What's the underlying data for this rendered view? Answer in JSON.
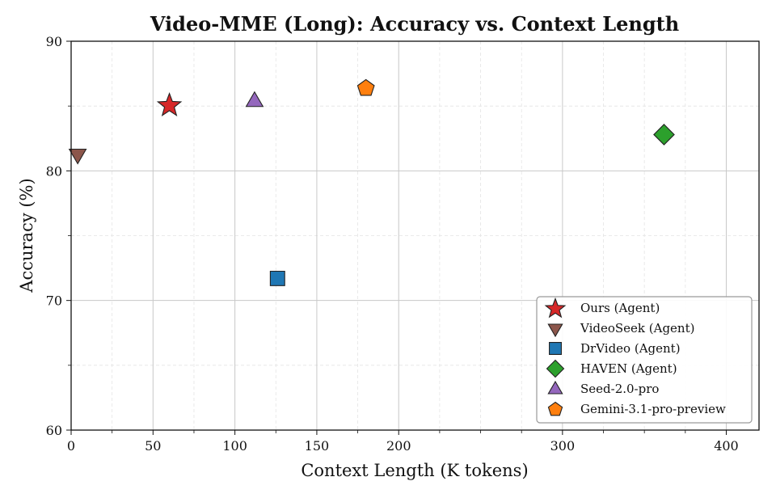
{
  "chart_data": {
    "type": "scatter",
    "title": "Video-MME (Long): Accuracy vs. Context Length",
    "xlabel": "Context Length (K tokens)",
    "ylabel": "Accuracy (%)",
    "xlim": [
      0,
      420
    ],
    "ylim": [
      60,
      90
    ],
    "x_major_ticks": [
      0,
      50,
      100,
      150,
      200,
      300,
      400
    ],
    "x_tick_labels": [
      "0",
      "50",
      "100",
      "150",
      "200",
      "300",
      "400"
    ],
    "x_minor_ticks": [
      25,
      75,
      125,
      175,
      225,
      250,
      275,
      325,
      350,
      375
    ],
    "y_major_ticks": [
      60,
      70,
      80,
      90
    ],
    "y_tick_labels": [
      "60",
      "70",
      "80",
      "90"
    ],
    "y_minor_ticks": [
      65,
      75,
      85
    ],
    "grid": true,
    "legend_position": "bottom-right",
    "series": [
      {
        "name": "Ours (Agent)",
        "marker": "star",
        "color": "#d62728",
        "x": 60,
        "y": 85.1
      },
      {
        "name": "VideoSeek (Agent)",
        "marker": "triangle-down",
        "color": "#8c564b",
        "x": 4,
        "y": 81.3
      },
      {
        "name": "DrVideo (Agent)",
        "marker": "square",
        "color": "#1f77b4",
        "x": 126,
        "y": 71.7
      },
      {
        "name": "HAVEN (Agent)",
        "marker": "diamond",
        "color": "#2ca02c",
        "x": 362,
        "y": 82.8
      },
      {
        "name": "Seed-2.0-pro",
        "marker": "triangle-up",
        "color": "#9467bd",
        "x": 112,
        "y": 85.4
      },
      {
        "name": "Gemini-3.1-pro-preview",
        "marker": "pentagon",
        "color": "#ff7f0e",
        "x": 180,
        "y": 86.4
      }
    ]
  }
}
